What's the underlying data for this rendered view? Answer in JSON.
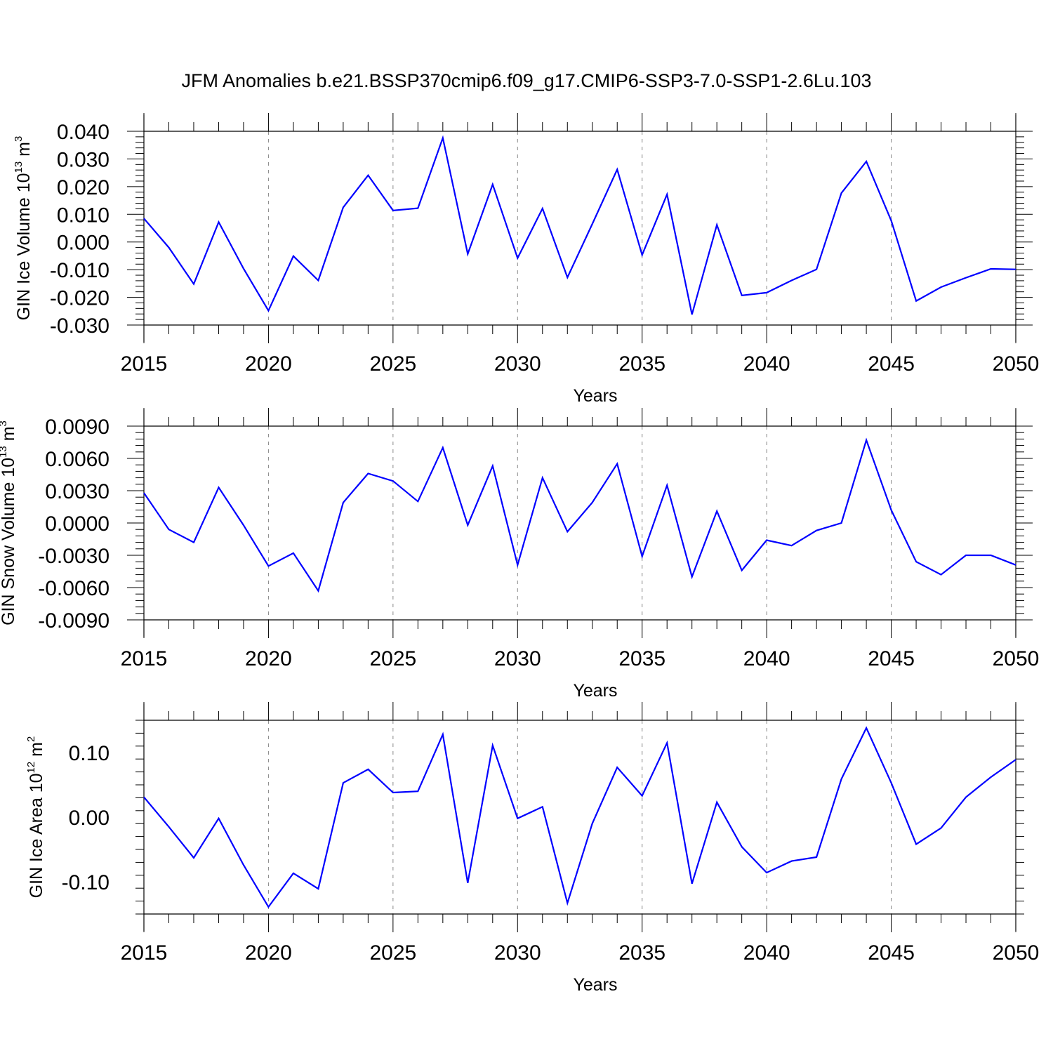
{
  "title": "JFM Anomalies b.e21.BSSP370cmip6.f09_g17.CMIP6-SSP3-7.0-SSP1-2.6Lu.103",
  "colors": {
    "line": "#0000ff",
    "axis": "#000000",
    "grid": "#888888"
  },
  "chart_data": [
    {
      "type": "line",
      "xlabel": "Years",
      "ylabel_text": "GIN Ice Volume 10",
      "ylabel_exp": "13",
      "ylabel_unit": " m",
      "ylabel_unit_exp": "3",
      "xlim": [
        2015,
        2050
      ],
      "ylim": [
        -0.03,
        0.04
      ],
      "x_ticks": [
        2015,
        2020,
        2025,
        2030,
        2035,
        2040,
        2045,
        2050
      ],
      "y_ticks": [
        0.04,
        0.03,
        0.02,
        0.01,
        0.0,
        -0.01,
        -0.02,
        -0.03
      ],
      "y_tick_labels": [
        "0.040",
        "0.030",
        "0.020",
        "0.010",
        "0.000",
        "-0.010",
        "-0.020",
        "-0.030"
      ],
      "grid": "vertical dashed at major x ticks",
      "x": [
        2015,
        2016,
        2017,
        2018,
        2019,
        2020,
        2021,
        2022,
        2023,
        2024,
        2025,
        2026,
        2027,
        2028,
        2029,
        2030,
        2031,
        2032,
        2033,
        2034,
        2035,
        2036,
        2037,
        2038,
        2039,
        2040,
        2041,
        2042,
        2043,
        2044,
        2045,
        2046,
        2047,
        2048,
        2049,
        2050
      ],
      "values": [
        0.0085,
        -0.002,
        -0.0152,
        0.0072,
        -0.0096,
        -0.0248,
        -0.0051,
        -0.0139,
        0.0125,
        0.0241,
        0.0114,
        0.0122,
        0.0376,
        -0.0043,
        0.0208,
        -0.0058,
        0.0121,
        -0.0128,
        0.0065,
        0.0262,
        -0.0047,
        0.0172,
        -0.0262,
        0.0062,
        -0.0193,
        -0.0183,
        -0.0139,
        -0.0099,
        0.0177,
        0.0291,
        0.0077,
        -0.0213,
        -0.0163,
        -0.0129,
        -0.0097,
        -0.0099
      ]
    },
    {
      "type": "line",
      "xlabel": "Years",
      "ylabel_text": "GIN Snow Volume 10",
      "ylabel_exp": "13",
      "ylabel_unit": " m",
      "ylabel_unit_exp": "3",
      "xlim": [
        2015,
        2050
      ],
      "ylim": [
        -0.009,
        0.009
      ],
      "x_ticks": [
        2015,
        2020,
        2025,
        2030,
        2035,
        2040,
        2045,
        2050
      ],
      "y_ticks": [
        0.009,
        0.006,
        0.003,
        0.0,
        -0.003,
        -0.006,
        -0.009
      ],
      "y_tick_labels": [
        "0.0090",
        "0.0060",
        "0.0030",
        "0.0000",
        "-0.0030",
        "-0.0060",
        "-0.0090"
      ],
      "grid": "vertical dashed at major x ticks",
      "x": [
        2015,
        2016,
        2017,
        2018,
        2019,
        2020,
        2021,
        2022,
        2023,
        2024,
        2025,
        2026,
        2027,
        2028,
        2029,
        2030,
        2031,
        2032,
        2033,
        2034,
        2035,
        2036,
        2037,
        2038,
        2039,
        2040,
        2041,
        2042,
        2043,
        2044,
        2045,
        2046,
        2047,
        2048,
        2049,
        2050
      ],
      "values": [
        0.0028,
        -0.0006,
        -0.0018,
        0.0033,
        -0.0002,
        -0.004,
        -0.0028,
        -0.0063,
        0.0019,
        0.0046,
        0.0039,
        0.002,
        0.007,
        -0.0002,
        0.0053,
        -0.0039,
        0.0042,
        -0.0008,
        0.0019,
        0.0055,
        -0.0031,
        0.0035,
        -0.005,
        0.0011,
        -0.0044,
        -0.0016,
        -0.0021,
        -0.0007,
        0.0,
        0.0077,
        0.0012,
        -0.0036,
        -0.0048,
        -0.003,
        -0.003,
        -0.0039
      ]
    },
    {
      "type": "line",
      "xlabel": "Years",
      "ylabel_text": "GIN Ice Area 10",
      "ylabel_exp": "12",
      "ylabel_unit": " m",
      "ylabel_unit_exp": "2",
      "xlim": [
        2015,
        2050
      ],
      "ylim": [
        -0.15,
        0.15
      ],
      "x_ticks": [
        2015,
        2020,
        2025,
        2030,
        2035,
        2040,
        2045,
        2050
      ],
      "y_ticks": [
        0.1,
        0.0,
        -0.1
      ],
      "y_tick_labels": [
        "0.10",
        "0.00",
        "-0.10"
      ],
      "grid": "vertical dashed at major x ticks",
      "x": [
        2015,
        2016,
        2017,
        2018,
        2019,
        2020,
        2021,
        2022,
        2023,
        2024,
        2025,
        2026,
        2027,
        2028,
        2029,
        2030,
        2031,
        2032,
        2033,
        2034,
        2035,
        2036,
        2037,
        2038,
        2039,
        2040,
        2041,
        2042,
        2043,
        2044,
        2045,
        2046,
        2047,
        2048,
        2049,
        2050
      ],
      "values": [
        0.031,
        -0.015,
        -0.063,
        -0.002,
        -0.074,
        -0.139,
        -0.087,
        -0.111,
        0.053,
        0.074,
        0.038,
        0.04,
        0.128,
        -0.102,
        0.111,
        -0.002,
        0.016,
        -0.133,
        -0.01,
        0.077,
        0.033,
        0.115,
        -0.103,
        0.023,
        -0.046,
        -0.086,
        -0.068,
        -0.062,
        0.059,
        0.138,
        0.053,
        -0.042,
        -0.017,
        0.031,
        0.062,
        0.089
      ]
    }
  ]
}
